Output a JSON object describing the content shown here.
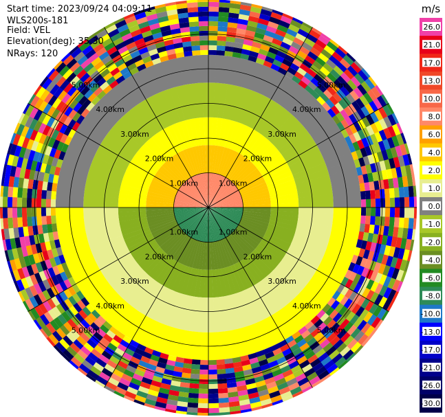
{
  "header": {
    "start_time": "Start time: 2023/09/24 04:09:11",
    "site": "WLS200s-181",
    "field": "Field: VEL",
    "elevation": "Elevation(deg): 35.30",
    "nrays": "NRays: 120"
  },
  "colorbar": {
    "unit": "m/s",
    "levels": [
      {
        "value": "26.0",
        "color": "#f040a8"
      },
      {
        "value": "21.0",
        "color": "#e8001a"
      },
      {
        "value": "17.0",
        "color": "#f02818"
      },
      {
        "value": "13.0",
        "color": "#f04828"
      },
      {
        "value": "10.0",
        "color": "#f86848"
      },
      {
        "value": "8.0",
        "color": "#ff8868"
      },
      {
        "value": "6.0",
        "color": "#ffa000"
      },
      {
        "value": "4.0",
        "color": "#ffc800"
      },
      {
        "value": "2.0",
        "color": "#ffff00"
      },
      {
        "value": "1.0",
        "color": "#e8ee90"
      },
      {
        "value": "0.0",
        "color": "#808080"
      },
      {
        "value": "-1.0",
        "color": "#a8c828"
      },
      {
        "value": "-2.0",
        "color": "#88b020"
      },
      {
        "value": "-4.0",
        "color": "#6b8e23"
      },
      {
        "value": "-6.0",
        "color": "#228b22"
      },
      {
        "value": "-8.0",
        "color": "#2e8b57"
      },
      {
        "value": "-10.0",
        "color": "#1e78c8"
      },
      {
        "value": "-13.0",
        "color": "#0000ff"
      },
      {
        "value": "-17.0",
        "color": "#0000c8"
      },
      {
        "value": "-21.0",
        "color": "#00008b"
      },
      {
        "value": "-26.0",
        "color": "#000068"
      },
      {
        "value": "-30.0",
        "color": "#000048"
      }
    ]
  },
  "chart_data": {
    "type": "heatmap",
    "projection": "polar-ppi",
    "field": "VEL",
    "nrays": 120,
    "range_rings_km": [
      1,
      2,
      3,
      4,
      5
    ],
    "ring_label_text": [
      "1.00km",
      "2.00km",
      "3.00km",
      "4.00km",
      "5.00km"
    ],
    "max_range_km": 6.0,
    "spokes_deg": [
      0,
      30,
      60,
      90,
      120,
      150,
      180,
      210,
      240,
      270,
      300,
      330
    ],
    "velocity_by_range_band": [
      {
        "range_km": [
          0.0,
          1.0
        ],
        "upper_half": 8.0,
        "lower_half": -8.0
      },
      {
        "range_km": [
          1.0,
          1.8
        ],
        "upper_half": 4.0,
        "lower_half": -4.0
      },
      {
        "range_km": [
          1.8,
          2.6
        ],
        "upper_half": 2.0,
        "lower_half": -2.0
      },
      {
        "range_km": [
          2.6,
          3.6
        ],
        "upper_half": -1.0,
        "lower_half": 1.0
      },
      {
        "range_km": [
          3.6,
          4.4
        ],
        "upper_half": 0.0,
        "lower_half": 2.0
      },
      {
        "range_km": [
          4.4,
          6.0
        ],
        "upper_half": "noise",
        "lower_half": "noise"
      }
    ]
  }
}
